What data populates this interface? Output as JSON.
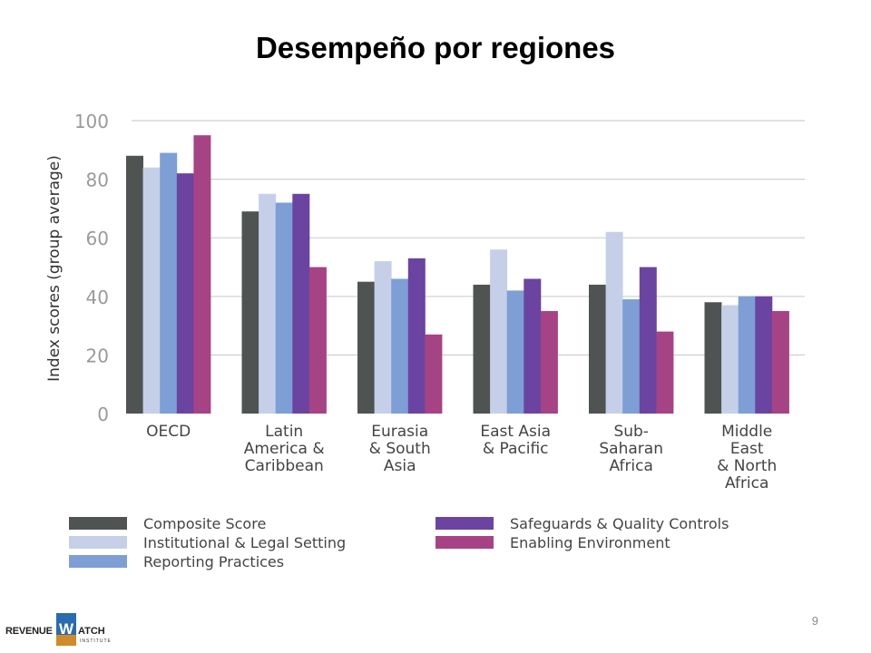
{
  "slide": {
    "title": "Desempeño por regiones",
    "page_number": "9",
    "logo": {
      "text": "REVENUE WATCH",
      "subtext": "INSTITUTE"
    }
  },
  "chart_data": {
    "type": "bar",
    "ylabel": "Index scores (group average)",
    "ylim": [
      0,
      100
    ],
    "yticks": [
      "0",
      "20",
      "40",
      "60",
      "80",
      "100"
    ],
    "grid": true,
    "legend_position": "bottom",
    "categories": [
      [
        "OECD"
      ],
      [
        "Latin",
        "America &",
        "Caribbean"
      ],
      [
        "Eurasia",
        "& South",
        "Asia"
      ],
      [
        "East Asia",
        "& Pacific"
      ],
      [
        "Sub-",
        "Saharan",
        "Africa"
      ],
      [
        "Middle",
        "East",
        "& North",
        "Africa"
      ]
    ],
    "series": [
      {
        "name": "Composite Score",
        "color": "#4f5452",
        "values": [
          88,
          69,
          45,
          44,
          44,
          38
        ]
      },
      {
        "name": "Institutional & Legal Setting",
        "color": "#c5d0e8",
        "values": [
          84,
          75,
          52,
          56,
          62,
          37
        ]
      },
      {
        "name": "Reporting Practices",
        "color": "#7d9fd6",
        "values": [
          89,
          72,
          46,
          42,
          39,
          40
        ]
      },
      {
        "name": "Safeguards & Quality Controls",
        "color": "#6a44a0",
        "values": [
          82,
          75,
          53,
          46,
          50,
          40
        ]
      },
      {
        "name": "Enabling Environment",
        "color": "#a64384",
        "values": [
          95,
          50,
          27,
          35,
          28,
          35
        ]
      }
    ]
  }
}
